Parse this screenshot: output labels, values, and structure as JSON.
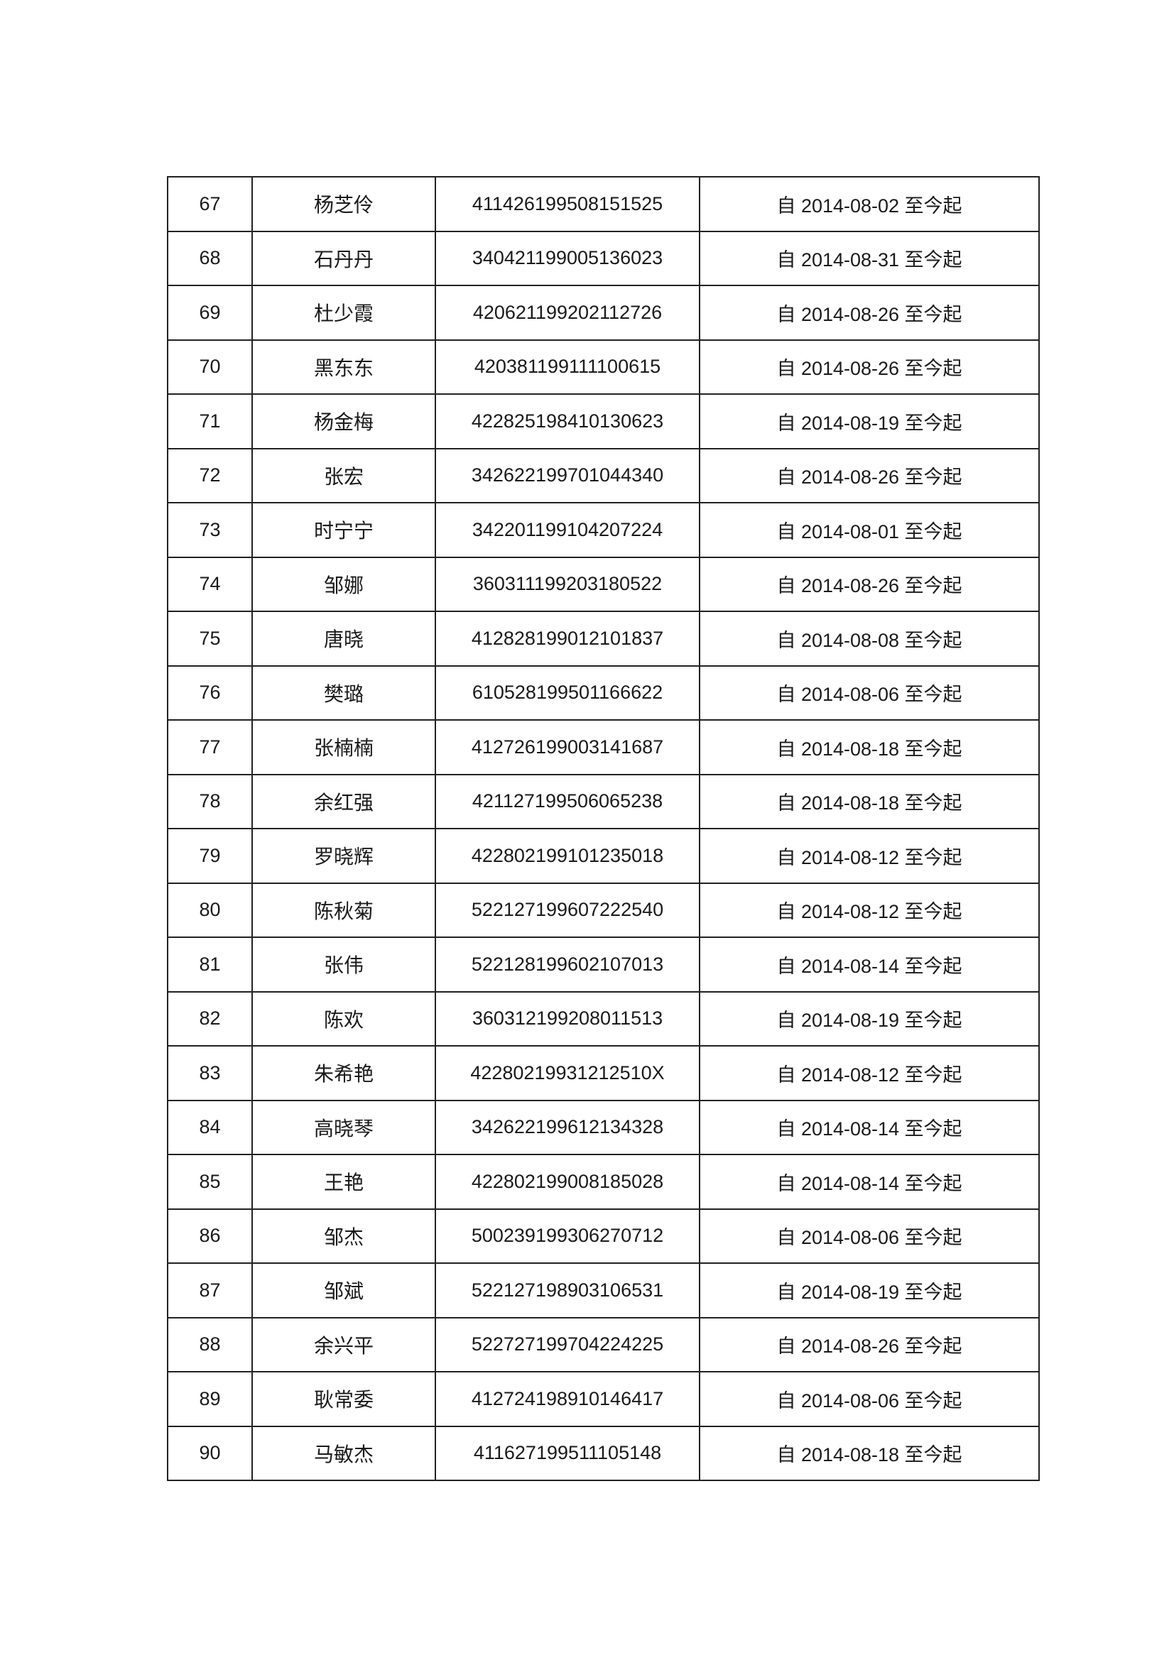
{
  "rows": [
    {
      "no": "67",
      "name": "杨芝伶",
      "id": "411426199508151525",
      "date": "自 2014-08-02 至今起"
    },
    {
      "no": "68",
      "name": "石丹丹",
      "id": "340421199005136023",
      "date": "自 2014-08-31 至今起"
    },
    {
      "no": "69",
      "name": "杜少霞",
      "id": "420621199202112726",
      "date": "自 2014-08-26 至今起"
    },
    {
      "no": "70",
      "name": "黑东东",
      "id": "420381199111100615",
      "date": "自 2014-08-26 至今起"
    },
    {
      "no": "71",
      "name": "杨金梅",
      "id": "422825198410130623",
      "date": "自 2014-08-19 至今起"
    },
    {
      "no": "72",
      "name": "张宏",
      "id": "342622199701044340",
      "date": "自 2014-08-26 至今起"
    },
    {
      "no": "73",
      "name": "时宁宁",
      "id": "342201199104207224",
      "date": "自 2014-08-01 至今起"
    },
    {
      "no": "74",
      "name": "邹娜",
      "id": "360311199203180522",
      "date": "自 2014-08-26 至今起"
    },
    {
      "no": "75",
      "name": "唐晓",
      "id": "412828199012101837",
      "date": "自 2014-08-08 至今起"
    },
    {
      "no": "76",
      "name": "樊璐",
      "id": "610528199501166622",
      "date": "自 2014-08-06 至今起"
    },
    {
      "no": "77",
      "name": "张楠楠",
      "id": "412726199003141687",
      "date": "自 2014-08-18 至今起"
    },
    {
      "no": "78",
      "name": "余红强",
      "id": "421127199506065238",
      "date": "自 2014-08-18 至今起"
    },
    {
      "no": "79",
      "name": "罗晓辉",
      "id": "422802199101235018",
      "date": "自 2014-08-12 至今起"
    },
    {
      "no": "80",
      "name": "陈秋菊",
      "id": "522127199607222540",
      "date": "自 2014-08-12 至今起"
    },
    {
      "no": "81",
      "name": "张伟",
      "id": "522128199602107013",
      "date": "自 2014-08-14 至今起"
    },
    {
      "no": "82",
      "name": "陈欢",
      "id": "360312199208011513",
      "date": "自 2014-08-19 至今起"
    },
    {
      "no": "83",
      "name": "朱希艳",
      "id": "42280219931212510X",
      "date": "自 2014-08-12 至今起"
    },
    {
      "no": "84",
      "name": "高晓琴",
      "id": "342622199612134328",
      "date": "自 2014-08-14 至今起"
    },
    {
      "no": "85",
      "name": "王艳",
      "id": "422802199008185028",
      "date": "自 2014-08-14 至今起"
    },
    {
      "no": "86",
      "name": "邹杰",
      "id": "500239199306270712",
      "date": "自 2014-08-06 至今起"
    },
    {
      "no": "87",
      "name": "邹斌",
      "id": "522127198903106531",
      "date": "自 2014-08-19 至今起"
    },
    {
      "no": "88",
      "name": "余兴平",
      "id": "522727199704224225",
      "date": "自 2014-08-26 至今起"
    },
    {
      "no": "89",
      "name": "耿常委",
      "id": "412724198910146417",
      "date": "自 2014-08-06 至今起"
    },
    {
      "no": "90",
      "name": "马敏杰",
      "id": "411627199511105148",
      "date": "自 2014-08-18 至今起"
    }
  ]
}
